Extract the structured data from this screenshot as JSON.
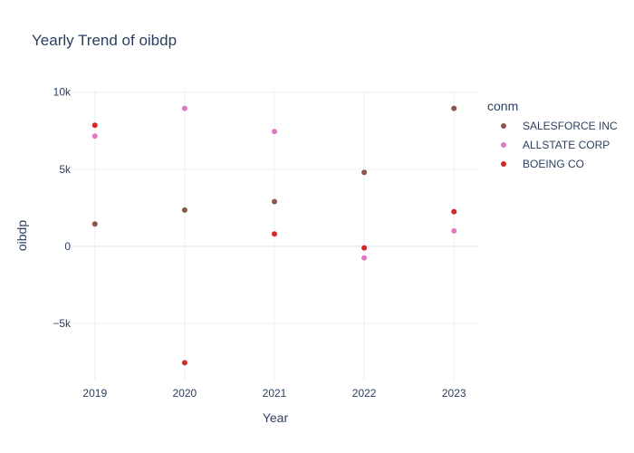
{
  "chart_data": {
    "type": "scatter",
    "title": "Yearly Trend of oibdp",
    "xlabel": "Year",
    "ylabel": "oibdp",
    "x": [
      2019,
      2020,
      2021,
      2022,
      2023
    ],
    "x_tick_labels": [
      "2019",
      "2020",
      "2021",
      "2022",
      "2023"
    ],
    "y_ticks": [
      -5000,
      0,
      5000,
      10000
    ],
    "y_tick_labels": [
      "−5k",
      "0",
      "5k",
      "10k"
    ],
    "xlim": [
      2018.75,
      2023.27
    ],
    "ylim": [
      -8700,
      10100
    ],
    "grid": true,
    "legend": {
      "title": "conm",
      "position": "right"
    },
    "series": [
      {
        "name": "SALESFORCE INC",
        "color": "#8c564b",
        "values": [
          1450,
          2350,
          2900,
          4800,
          8950
        ]
      },
      {
        "name": "ALLSTATE CORP",
        "color": "#e377c2",
        "values": [
          7150,
          8950,
          7450,
          -750,
          1000
        ]
      },
      {
        "name": "BOEING CO",
        "color": "#d62728",
        "values": [
          7850,
          -7550,
          800,
          -100,
          2250
        ]
      }
    ]
  }
}
